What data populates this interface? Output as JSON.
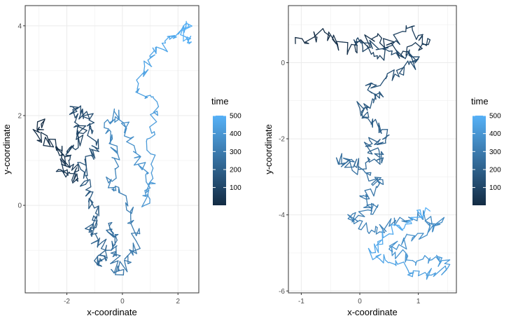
{
  "colors": {
    "low": "#132B43",
    "high": "#56B1F7",
    "grid": "#ebebeb",
    "border": "#333333"
  },
  "chart_data": [
    {
      "type": "path",
      "xlabel": "x-coordinate",
      "ylabel": "y-coordinate",
      "xlim": [
        -3.5,
        2.75
      ],
      "ylim": [
        -1.95,
        4.45
      ],
      "x_ticks": [
        -2,
        0,
        2
      ],
      "y_ticks": [
        0,
        2,
        4
      ],
      "x_tick_labels": [
        "-2",
        "0",
        "2"
      ],
      "y_tick_labels": [
        "0",
        "2",
        "4"
      ],
      "grid": true,
      "color_by": "time",
      "time_range": [
        1,
        500
      ],
      "legend": {
        "title": "time",
        "position": "right",
        "breaks": [
          100,
          200,
          300,
          400,
          500
        ],
        "labels": [
          "100",
          "200",
          "300",
          "400",
          "500"
        ]
      },
      "waypoints": [
        [
          -2.8,
          1.9,
          0
        ],
        [
          -3.1,
          1.6,
          12
        ],
        [
          -2.4,
          1.3,
          25
        ],
        [
          -1.9,
          1.1,
          38
        ],
        [
          -2.3,
          0.8,
          50
        ],
        [
          -1.6,
          0.6,
          65
        ],
        [
          -2.0,
          1.2,
          80
        ],
        [
          -1.4,
          1.6,
          95
        ],
        [
          -1.8,
          2.2,
          110
        ],
        [
          -1.2,
          1.9,
          125
        ],
        [
          -1.0,
          1.3,
          140
        ],
        [
          -1.5,
          0.8,
          155
        ],
        [
          -1.2,
          0.3,
          170
        ],
        [
          -0.9,
          -0.2,
          185
        ],
        [
          -1.2,
          -0.6,
          200
        ],
        [
          -0.7,
          -0.9,
          215
        ],
        [
          -0.9,
          -1.3,
          228
        ],
        [
          -0.4,
          -1.0,
          240
        ],
        [
          -0.5,
          -0.4,
          252
        ],
        [
          -0.2,
          -0.9,
          264
        ],
        [
          -0.3,
          -1.5,
          276
        ],
        [
          0.2,
          -1.3,
          288
        ],
        [
          0.5,
          -0.8,
          298
        ],
        [
          0.3,
          -0.3,
          308
        ],
        [
          -0.1,
          0.3,
          318
        ],
        [
          -0.5,
          0.5,
          328
        ],
        [
          -0.2,
          1.2,
          338
        ],
        [
          -0.6,
          1.6,
          348
        ],
        [
          -0.3,
          2.1,
          358
        ],
        [
          0.1,
          1.7,
          368
        ],
        [
          0.4,
          1.2,
          378
        ],
        [
          0.9,
          0.7,
          388
        ],
        [
          0.8,
          0.0,
          398
        ],
        [
          1.1,
          0.6,
          408
        ],
        [
          1.0,
          1.5,
          418
        ],
        [
          1.3,
          2.2,
          428
        ],
        [
          0.6,
          2.6,
          438
        ],
        [
          0.8,
          3.1,
          448
        ],
        [
          1.2,
          3.4,
          458
        ],
        [
          1.7,
          3.7,
          468
        ],
        [
          2.2,
          4.0,
          478
        ],
        [
          2.4,
          3.6,
          488
        ],
        [
          2.3,
          4.1,
          499
        ]
      ]
    },
    {
      "type": "path",
      "xlabel": "x-coordinate",
      "ylabel": "y-coordinate",
      "xlim": [
        -1.22,
        1.65
      ],
      "ylim": [
        -6.05,
        1.5
      ],
      "x_ticks": [
        -1,
        0,
        1
      ],
      "y_ticks": [
        0,
        -2,
        -4,
        -6
      ],
      "x_tick_labels": [
        "-1",
        "0",
        "1"
      ],
      "y_tick_labels": [
        "0",
        "-2",
        "-4",
        "-6"
      ],
      "grid": true,
      "color_by": "time",
      "time_range": [
        1,
        500
      ],
      "legend": {
        "title": "time",
        "position": "right",
        "breaks": [
          100,
          200,
          300,
          400,
          500
        ],
        "labels": [
          "100",
          "200",
          "300",
          "400",
          "500"
        ]
      },
      "waypoints": [
        [
          -1.1,
          0.5,
          0
        ],
        [
          -0.6,
          0.8,
          12
        ],
        [
          -0.2,
          0.3,
          25
        ],
        [
          0.3,
          0.7,
          38
        ],
        [
          0.7,
          0.2,
          50
        ],
        [
          1.2,
          0.6,
          62
        ],
        [
          0.8,
          0.9,
          75
        ],
        [
          0.3,
          0.1,
          88
        ],
        [
          -0.1,
          0.6,
          100
        ],
        [
          0.5,
          0.3,
          112
        ],
        [
          1.0,
          0.1,
          125
        ],
        [
          0.6,
          -0.3,
          138
        ],
        [
          0.1,
          -0.6,
          150
        ],
        [
          0.4,
          -0.9,
          162
        ],
        [
          0.0,
          -1.2,
          175
        ],
        [
          0.2,
          -1.6,
          188
        ],
        [
          0.5,
          -1.9,
          200
        ],
        [
          0.1,
          -2.2,
          212
        ],
        [
          0.4,
          -2.5,
          225
        ],
        [
          -0.1,
          -2.7,
          238
        ],
        [
          -0.4,
          -2.5,
          250
        ],
        [
          0.1,
          -2.9,
          262
        ],
        [
          0.4,
          -3.2,
          275
        ],
        [
          0.0,
          -3.5,
          288
        ],
        [
          0.3,
          -3.8,
          300
        ],
        [
          -0.2,
          -4.1,
          312
        ],
        [
          0.2,
          -4.4,
          325
        ],
        [
          0.6,
          -4.2,
          338
        ],
        [
          1.0,
          -4.0,
          350
        ],
        [
          1.4,
          -4.2,
          362
        ],
        [
          0.9,
          -4.6,
          375
        ],
        [
          0.5,
          -4.9,
          388
        ],
        [
          0.9,
          -5.2,
          400
        ],
        [
          1.3,
          -5.1,
          412
        ],
        [
          1.5,
          -5.4,
          425
        ],
        [
          1.0,
          -5.6,
          438
        ],
        [
          0.6,
          -5.3,
          450
        ],
        [
          0.2,
          -5.0,
          462
        ],
        [
          0.5,
          -4.5,
          475
        ],
        [
          0.9,
          -4.1,
          488
        ],
        [
          1.2,
          -3.9,
          499
        ]
      ]
    }
  ]
}
